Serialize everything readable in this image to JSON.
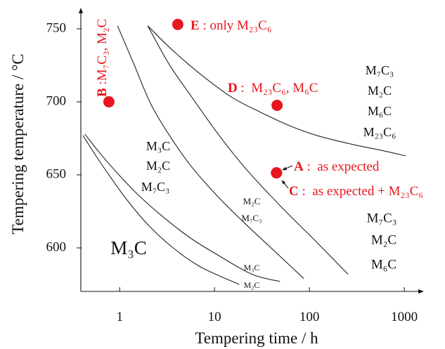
{
  "chart_data": {
    "type": "line",
    "xlabel": "Tempering time / h",
    "ylabel": "Tempering temperature / °C",
    "xscale": "log",
    "xlim": [
      0.39,
      1530
    ],
    "ylim": [
      570.2,
      762.5
    ],
    "xticks": [
      "1",
      "10",
      "100",
      "1000"
    ],
    "yticks": [
      "600",
      "650",
      "700",
      "750"
    ],
    "grid": false,
    "boundaries": [
      [
        [
          0.43,
          678
        ],
        [
          0.6,
          666
        ],
        [
          0.92,
          652
        ],
        [
          1.53,
          637
        ],
        [
          2.78,
          622
        ],
        [
          5.51,
          607
        ],
        [
          10.9,
          595
        ],
        [
          24.7,
          582
        ],
        [
          48.9,
          577
        ]
      ],
      [
        [
          0.41,
          677
        ],
        [
          0.55,
          664
        ],
        [
          0.77,
          650
        ],
        [
          1.19,
          633
        ],
        [
          1.98,
          616
        ],
        [
          3.59,
          600.5
        ],
        [
          7.11,
          587
        ],
        [
          18.2,
          575
        ]
      ],
      [
        [
          0.95,
          752
        ],
        [
          1.41,
          726
        ],
        [
          2.15,
          698
        ],
        [
          3.59,
          674
        ],
        [
          5.99,
          654
        ],
        [
          10.9,
          635
        ],
        [
          21.5,
          616
        ],
        [
          42.6,
          598
        ],
        [
          87.2,
          579
        ]
      ],
      [
        [
          1.98,
          752
        ],
        [
          3.3,
          726
        ],
        [
          5.51,
          705
        ],
        [
          10.9,
          678
        ],
        [
          21.5,
          654
        ],
        [
          50.6,
          628
        ],
        [
          119,
          604
        ],
        [
          255,
          582
        ]
      ],
      [
        [
          1.98,
          752
        ],
        [
          3.03,
          740
        ],
        [
          4.64,
          729
        ],
        [
          7.74,
          717
        ],
        [
          15.3,
          703
        ],
        [
          30.3,
          693
        ],
        [
          59.9,
          684
        ],
        [
          119,
          677
        ],
        [
          278,
          671
        ],
        [
          550,
          667
        ],
        [
          1035,
          663
        ]
      ]
    ],
    "points": [
      {
        "letter": "E",
        "text": " : only M₂₃C₆",
        "x": 4.1,
        "y": 753
      },
      {
        "letter": "B",
        "text": " :M₇C₃, M₂C",
        "x": 0.77,
        "y": 700
      },
      {
        "letter": "D",
        "text": " :  M₂₃C₆, M₆C",
        "x": 45.6,
        "y": 697.6
      },
      {
        "letter": "A",
        "text": " :  as expected",
        "x": 45,
        "y": 651.4
      },
      {
        "letter": "C",
        "text": " :  as expected + M₂₃C₆",
        "x": 45,
        "y": 651.4
      }
    ],
    "annotations": {
      "upper_right": [
        "M₇C₃",
        "M₂C",
        "M₆C",
        "M₂₃C₆"
      ],
      "middle_left": [
        "M₃C",
        "M₂C",
        "M₇C₃"
      ],
      "middle_small": [
        "M₂C",
        "M₇C₃"
      ],
      "lower_right": [
        "M₇C₃",
        "M₂C",
        "M₆C"
      ],
      "lower_left": "M₃C",
      "bottom_small": [
        "M₃C",
        "M₂C"
      ]
    },
    "colors": {
      "points": "#e8161e",
      "lines": "#222222"
    }
  }
}
